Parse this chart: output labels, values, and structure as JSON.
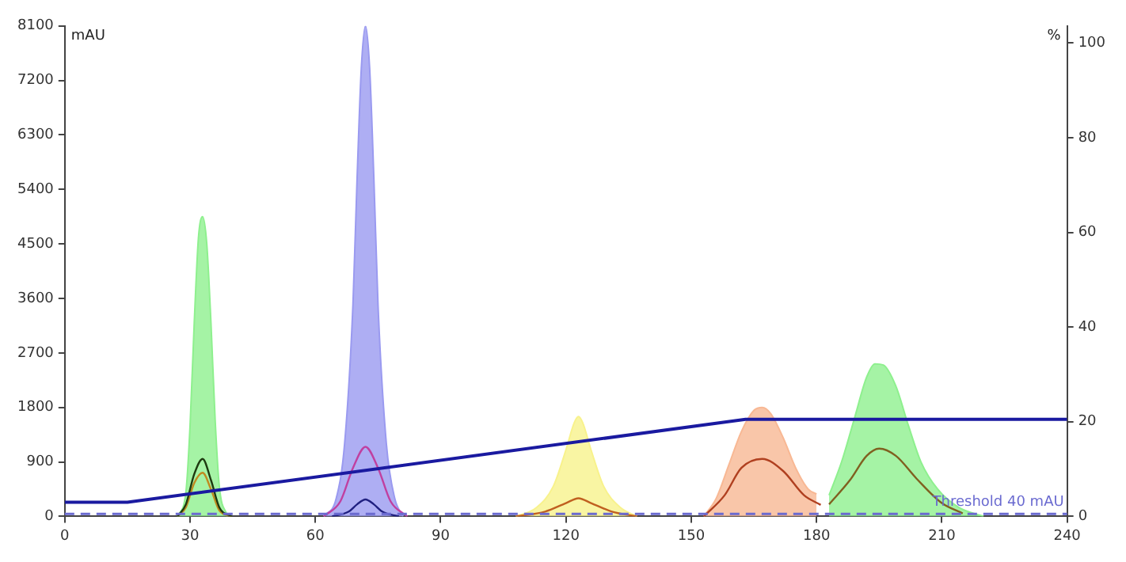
{
  "chart_data": {
    "type": "area",
    "ylabel": "mAU",
    "y2label": "%",
    "xlim": [
      0,
      240
    ],
    "xticks": [
      0,
      30,
      60,
      90,
      120,
      150,
      180,
      210,
      240
    ],
    "ylim": [
      0,
      8100
    ],
    "yticks": [
      0,
      900,
      1800,
      2700,
      3600,
      4500,
      5400,
      6300,
      7200,
      8100
    ],
    "y2lim": [
      0,
      103.6
    ],
    "y2ticks": [
      0,
      20,
      40,
      60,
      80,
      100
    ],
    "ref_lines": [
      {
        "axis": "y",
        "value": 40,
        "label": "Threshold 40 mAU",
        "color": "#6a6ad0",
        "line_style": "dashed"
      }
    ],
    "series": [
      {
        "type": "area",
        "color": "#8ef08e",
        "x": [
          27,
          29,
          30,
          31,
          32,
          33,
          34,
          35,
          36,
          37,
          39
        ],
        "values": [
          0,
          400,
          1500,
          3200,
          4600,
          4950,
          4500,
          3200,
          1600,
          500,
          0
        ]
      },
      {
        "type": "area",
        "color": "#9a9af0",
        "x": [
          62,
          65,
          67,
          69,
          70,
          71,
          72,
          73,
          74,
          75,
          77,
          79,
          81
        ],
        "values": [
          0,
          300,
          1200,
          3500,
          5600,
          7400,
          8100,
          7400,
          5600,
          3500,
          1200,
          300,
          0
        ]
      },
      {
        "type": "area",
        "color": "#f8f28c",
        "x": [
          108,
          113,
          117,
          120,
          122,
          123,
          124,
          126,
          129,
          133,
          137
        ],
        "values": [
          0,
          150,
          500,
          1100,
          1550,
          1650,
          1550,
          1100,
          500,
          150,
          0
        ]
      },
      {
        "type": "area",
        "color": "#f8b894",
        "x": [
          153,
          156,
          159,
          162,
          165,
          167,
          169,
          172,
          175,
          178,
          180
        ],
        "values": [
          0,
          300,
          850,
          1400,
          1750,
          1800,
          1700,
          1300,
          800,
          450,
          370
        ]
      },
      {
        "type": "area",
        "color": "#8ef08e",
        "x": [
          183,
          186,
          189,
          192,
          194,
          196,
          199,
          202,
          205,
          209,
          214,
          220
        ],
        "values": [
          350,
          900,
          1600,
          2300,
          2520,
          2500,
          2150,
          1500,
          900,
          450,
          150,
          0
        ]
      },
      {
        "type": "line",
        "color": "#1e3a10",
        "x": [
          27,
          29,
          31,
          33,
          35,
          37,
          40
        ],
        "values": [
          0,
          200,
          700,
          950,
          600,
          150,
          0
        ]
      },
      {
        "type": "line",
        "color": "#c08a20",
        "x": [
          27,
          29,
          31,
          33,
          35,
          37,
          40
        ],
        "values": [
          0,
          150,
          550,
          720,
          450,
          100,
          0
        ]
      },
      {
        "type": "line",
        "color": "#c040a0",
        "x": [
          62,
          66,
          69,
          72,
          75,
          78,
          82
        ],
        "values": [
          0,
          250,
          800,
          1150,
          800,
          250,
          0
        ]
      },
      {
        "type": "line",
        "color": "#202080",
        "x": [
          64,
          68,
          70,
          72,
          74,
          76,
          80
        ],
        "values": [
          0,
          80,
          200,
          280,
          200,
          80,
          0
        ]
      },
      {
        "type": "line",
        "color": "#c06020",
        "x": [
          108,
          115,
          120,
          123,
          126,
          131,
          137
        ],
        "values": [
          0,
          80,
          220,
          300,
          220,
          80,
          0
        ]
      },
      {
        "type": "line",
        "color": "#b04020",
        "x": [
          153,
          158,
          162,
          167,
          172,
          177,
          181
        ],
        "values": [
          0,
          350,
          800,
          950,
          750,
          350,
          190
        ]
      },
      {
        "type": "line",
        "color": "#806020",
        "x": [
          183,
          188,
          192,
          195,
          199,
          204,
          210,
          215
        ],
        "values": [
          200,
          600,
          1000,
          1120,
          1000,
          620,
          220,
          50
        ]
      },
      {
        "type": "line",
        "color": "#1a1aa0",
        "axis": "y2",
        "x": [
          0,
          15,
          163,
          240
        ],
        "values": [
          3,
          3,
          20.5,
          20.5
        ]
      }
    ]
  }
}
